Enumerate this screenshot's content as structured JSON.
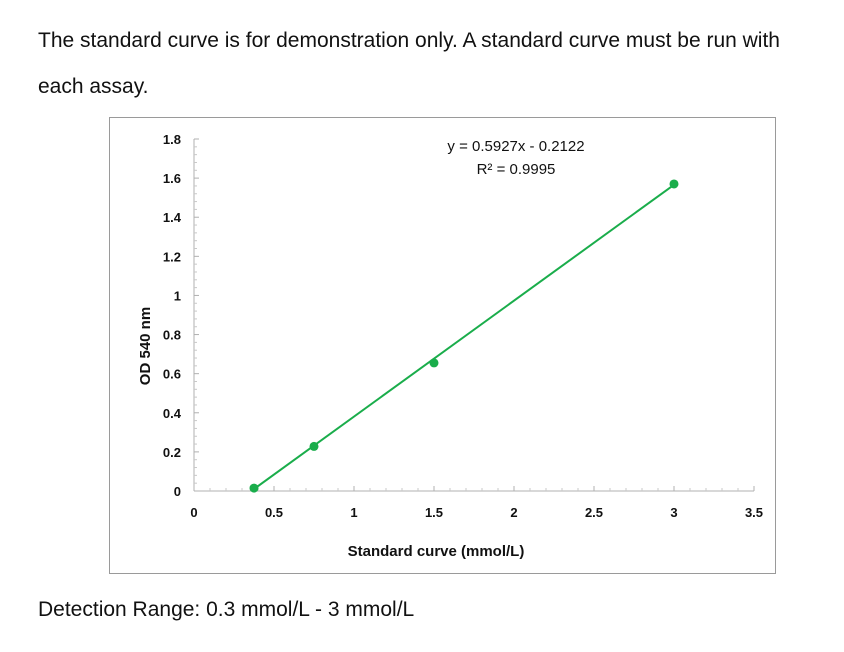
{
  "intro_text": "The standard curve is for demonstration only. A standard curve must be run with each assay.",
  "footer_text": "Detection Range: 0.3 mmol/L - 3 mmol/L",
  "chart_data": {
    "type": "scatter",
    "xlabel": "Standard curve (mmol/L)",
    "ylabel": "OD 540 nm",
    "xlim": [
      0,
      3.5
    ],
    "ylim": [
      0,
      1.8
    ],
    "x_ticks": [
      0,
      0.5,
      1,
      1.5,
      2,
      2.5,
      3,
      3.5
    ],
    "x_tick_labels": [
      "0",
      "0.5",
      "1",
      "1.5",
      "2",
      "2.5",
      "3",
      "3.5"
    ],
    "y_ticks": [
      0,
      0.2,
      0.4,
      0.6,
      0.8,
      1,
      1.2,
      1.4,
      1.6,
      1.8
    ],
    "y_tick_labels": [
      "0",
      "0.2",
      "0.4",
      "0.6",
      "0.8",
      "1",
      "1.2",
      "1.4",
      "1.6",
      "1.8"
    ],
    "series": [
      {
        "x": [
          0.375,
          0.75,
          1.5,
          3.0
        ],
        "y": [
          0.015,
          0.228,
          0.655,
          1.57
        ]
      }
    ],
    "trendline": {
      "slope": 0.5927,
      "intercept": -0.2122,
      "equation": "y = 0.5927x - 0.2122",
      "r2_label": "R² = 0.9995"
    },
    "color": "#1aad4b",
    "grid": false
  }
}
